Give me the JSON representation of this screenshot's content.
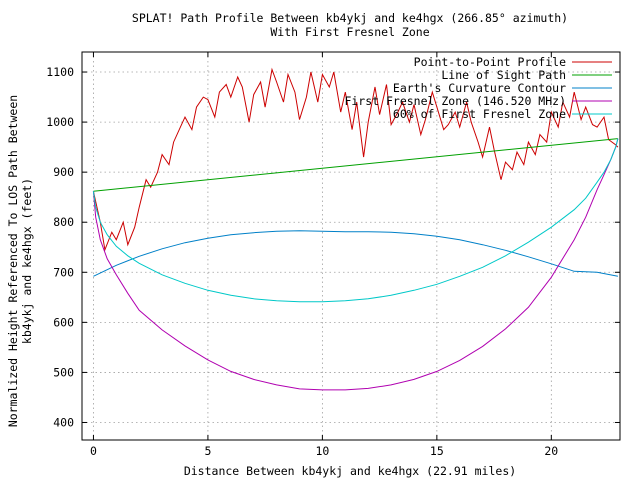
{
  "chart_data": {
    "type": "line",
    "title_line1": "SPLAT! Path Profile Between kb4ykj and ke4hgx (266.85° azimuth)",
    "title_line2": "With First Fresnel Zone",
    "xlabel": "Distance Between kb4ykj and ke4hgx (22.91 miles)",
    "ylabel_line1": "Normalized Height Referenced To LOS Path Between",
    "ylabel_line2": "kb4ykj and ke4hgx (feet)",
    "xlim": [
      -0.5,
      23.0
    ],
    "ylim": [
      365,
      1140
    ],
    "x_ticks": [
      0,
      5,
      10,
      15,
      20
    ],
    "y_ticks": [
      400,
      500,
      600,
      700,
      800,
      900,
      1000,
      1100
    ],
    "grid": true,
    "legend_position": "top-right",
    "series": [
      {
        "name": "Point-to-Point Profile",
        "color": "#cc0000",
        "x": [
          0,
          0.3,
          0.5,
          0.8,
          1.0,
          1.3,
          1.5,
          1.8,
          2.0,
          2.3,
          2.5,
          2.8,
          3.0,
          3.3,
          3.5,
          3.8,
          4.0,
          4.3,
          4.5,
          4.8,
          5.0,
          5.3,
          5.5,
          5.8,
          6.0,
          6.3,
          6.5,
          6.8,
          7.0,
          7.3,
          7.5,
          7.8,
          8.0,
          8.3,
          8.5,
          8.8,
          9.0,
          9.3,
          9.5,
          9.8,
          10.0,
          10.3,
          10.5,
          10.8,
          11.0,
          11.3,
          11.5,
          11.8,
          12.0,
          12.3,
          12.5,
          12.8,
          13.0,
          13.3,
          13.5,
          13.8,
          14.0,
          14.3,
          14.5,
          14.8,
          15.0,
          15.3,
          15.5,
          15.8,
          16.0,
          16.3,
          16.5,
          16.8,
          17.0,
          17.3,
          17.5,
          17.8,
          18.0,
          18.3,
          18.5,
          18.8,
          19.0,
          19.3,
          19.5,
          19.8,
          20.0,
          20.3,
          20.5,
          20.8,
          21.0,
          21.3,
          21.5,
          21.8,
          22.0,
          22.3,
          22.5,
          22.8,
          22.91
        ],
        "values": [
          862,
          800,
          745,
          780,
          765,
          800,
          755,
          790,
          830,
          885,
          870,
          900,
          935,
          915,
          960,
          990,
          1010,
          985,
          1030,
          1050,
          1045,
          1010,
          1060,
          1075,
          1050,
          1090,
          1070,
          1000,
          1055,
          1080,
          1030,
          1105,
          1080,
          1040,
          1095,
          1060,
          1005,
          1050,
          1100,
          1040,
          1095,
          1070,
          1100,
          1020,
          1060,
          985,
          1040,
          930,
          1000,
          1070,
          1015,
          1075,
          995,
          1020,
          1040,
          1000,
          1035,
          975,
          1005,
          1060,
          1030,
          985,
          995,
          1020,
          990,
          1040,
          1000,
          960,
          930,
          990,
          945,
          885,
          920,
          905,
          940,
          915,
          960,
          935,
          975,
          960,
          1020,
          990,
          1040,
          1010,
          1060,
          1005,
          1030,
          995,
          990,
          1010,
          965,
          955,
          950
        ]
      },
      {
        "name": "Line of Sight Path",
        "color": "#00a000",
        "x": [
          0,
          22.91
        ],
        "values": [
          862,
          967
        ]
      },
      {
        "name": "Earth's Curvature Contour",
        "color": "#0080c8",
        "x": [
          0,
          1,
          2,
          3,
          4,
          5,
          6,
          7,
          8,
          9,
          10,
          11,
          11.455,
          12,
          13,
          14,
          15,
          16,
          17,
          18,
          19,
          20,
          21,
          22,
          22.91
        ],
        "values": [
          692,
          714,
          732,
          747,
          759,
          768,
          775,
          779,
          782,
          783,
          782,
          781,
          781,
          781,
          780,
          777,
          772,
          765,
          755,
          744,
          731,
          717,
          702,
          700,
          692
        ]
      },
      {
        "name": "First Fresnel Zone (146.520 MHz)",
        "color": "#b000b0",
        "x": [
          0,
          0.1,
          0.3,
          0.6,
          1,
          1.5,
          2,
          3,
          4,
          5,
          6,
          7,
          8,
          9,
          10,
          11,
          12,
          13,
          14,
          15,
          16,
          17,
          18,
          19,
          20,
          21,
          21.5,
          22,
          22.3,
          22.6,
          22.81,
          22.91
        ],
        "values": [
          862,
          810,
          765,
          727,
          695,
          658,
          624,
          585,
          553,
          525,
          502,
          486,
          475,
          467,
          465,
          465,
          468,
          475,
          486,
          502,
          524,
          552,
          587,
          630,
          690,
          765,
          810,
          865,
          895,
          925,
          950,
          967
        ]
      },
      {
        "name": "60% of First Fresnel Zone",
        "color": "#00c8c8",
        "x": [
          0,
          0.1,
          0.3,
          0.6,
          1,
          1.5,
          2,
          3,
          4,
          5,
          6,
          7,
          8,
          9,
          10,
          11,
          12,
          13,
          14,
          15,
          16,
          17,
          18,
          19,
          20,
          21,
          21.5,
          22,
          22.3,
          22.6,
          22.81,
          22.91
        ],
        "values": [
          862,
          830,
          800,
          775,
          752,
          733,
          718,
          695,
          678,
          664,
          654,
          647,
          643,
          641,
          641,
          643,
          647,
          654,
          664,
          676,
          692,
          710,
          733,
          760,
          790,
          825,
          848,
          880,
          900,
          925,
          950,
          967
        ]
      }
    ]
  }
}
